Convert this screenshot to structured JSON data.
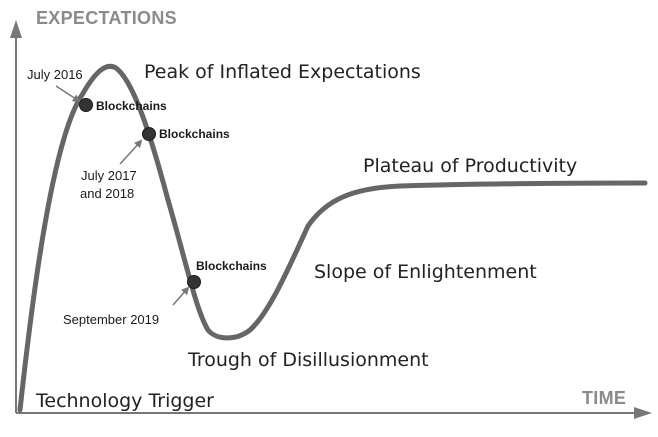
{
  "axes": {
    "y_title": "EXPECTATIONS",
    "x_title": "TIME"
  },
  "phases": {
    "technology_trigger": "Technology Trigger",
    "peak": "Peak of Inflated Expectations",
    "trough": "Trough of Disillusionment",
    "slope": "Slope of Enlightenment",
    "plateau": "Plateau of Productivity"
  },
  "markers": [
    {
      "label": "Blockchains",
      "date_lines": [
        "July 2016"
      ]
    },
    {
      "label": "Blockchains",
      "date_lines": [
        "July 2017",
        "and 2018"
      ]
    },
    {
      "label": "Blockchains",
      "date_lines": [
        "September 2019"
      ]
    }
  ],
  "colors": {
    "curve": "#666666",
    "axis": "#777777",
    "axis_title": "#8a8a8a",
    "marker_dot": "#333333",
    "text": "#222222",
    "background": "#ffffff"
  }
}
